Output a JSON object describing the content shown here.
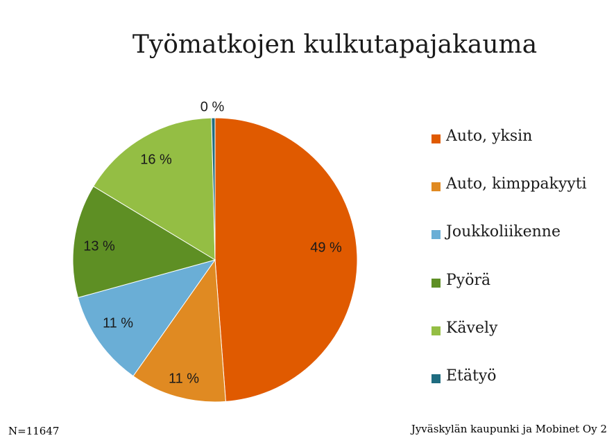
{
  "chart_data": {
    "type": "pie",
    "title": "Työmatkojen kulkutapajakauma",
    "slices": [
      {
        "name": "Auto, yksin",
        "value": 49,
        "label": "49 %",
        "color": "#E05A00"
      },
      {
        "name": "Auto, kimppakyyti",
        "value": 11,
        "label": "11 %",
        "color": "#E08A22"
      },
      {
        "name": "Joukkoliikenne",
        "value": 11,
        "label": "11 %",
        "color": "#6AAED6"
      },
      {
        "name": "Pyörä",
        "value": 13,
        "label": "13 %",
        "color": "#5E8F24"
      },
      {
        "name": "Kävely",
        "value": 16,
        "label": "16 %",
        "color": "#94BE44"
      },
      {
        "name": "Etätyö",
        "value": 0.4,
        "label": "0 %",
        "color": "#1F6C80"
      }
    ],
    "legend_position": "right"
  },
  "footer": {
    "n_note": "N=11647",
    "source": "Jyväskylän kaupunki ja Mobinet Oy 2"
  }
}
